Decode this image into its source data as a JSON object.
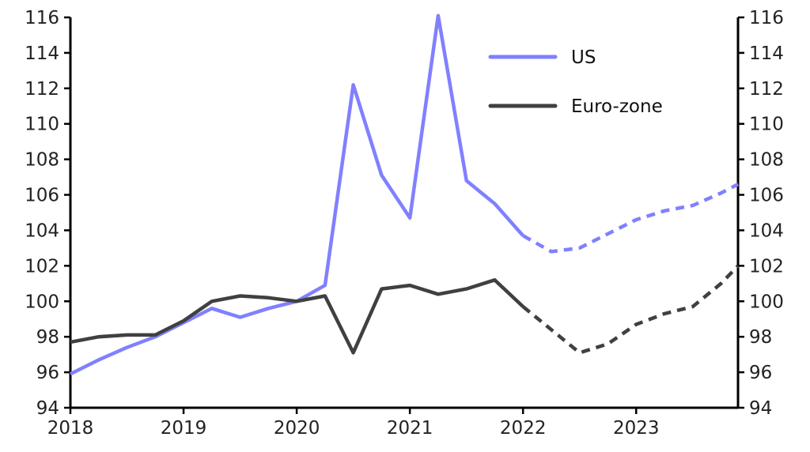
{
  "chart_data": {
    "type": "line",
    "title": "",
    "xlabel": "",
    "ylabel": "",
    "ylim": [
      94,
      116
    ],
    "xlim": [
      2018.0,
      2023.9
    ],
    "yticks": [
      94,
      96,
      98,
      100,
      102,
      104,
      106,
      108,
      110,
      112,
      114,
      116
    ],
    "xticks": [
      2018,
      2019,
      2020,
      2021,
      2022,
      2023
    ],
    "grid": false,
    "legend_position": "top-right",
    "colors": {
      "US": "#8080ff",
      "Euro-zone": "#404040",
      "axis": "#000000"
    },
    "series": [
      {
        "name": "US",
        "x": [
          2018.0,
          2018.25,
          2018.5,
          2018.75,
          2019.0,
          2019.25,
          2019.5,
          2019.75,
          2020.0,
          2020.25,
          2020.5,
          2020.75,
          2021.0,
          2021.25,
          2021.5,
          2021.75,
          2022.0,
          2022.25,
          2022.5,
          2022.75,
          2023.0,
          2023.25,
          2023.5,
          2023.75,
          2023.9
        ],
        "values": [
          95.9,
          96.7,
          97.4,
          98.0,
          98.8,
          99.6,
          99.1,
          99.6,
          100.0,
          100.9,
          112.2,
          107.1,
          104.7,
          116.1,
          106.8,
          105.5,
          103.7,
          102.8,
          103.0,
          103.8,
          104.6,
          105.1,
          105.4,
          106.1,
          106.6
        ],
        "projection_start_index": 16
      },
      {
        "name": "Euro-zone",
        "x": [
          2018.0,
          2018.25,
          2018.5,
          2018.75,
          2019.0,
          2019.25,
          2019.5,
          2019.75,
          2020.0,
          2020.25,
          2020.5,
          2020.75,
          2021.0,
          2021.25,
          2021.5,
          2021.75,
          2022.0,
          2022.25,
          2022.5,
          2022.75,
          2023.0,
          2023.25,
          2023.5,
          2023.75,
          2023.9
        ],
        "values": [
          97.7,
          98.0,
          98.1,
          98.1,
          98.9,
          100.0,
          100.3,
          100.2,
          100.0,
          100.3,
          97.1,
          100.7,
          100.9,
          100.4,
          100.7,
          101.2,
          99.7,
          98.4,
          97.1,
          97.6,
          98.7,
          99.3,
          99.7,
          101.0,
          102.0
        ],
        "projection_start_index": 16
      }
    ]
  }
}
